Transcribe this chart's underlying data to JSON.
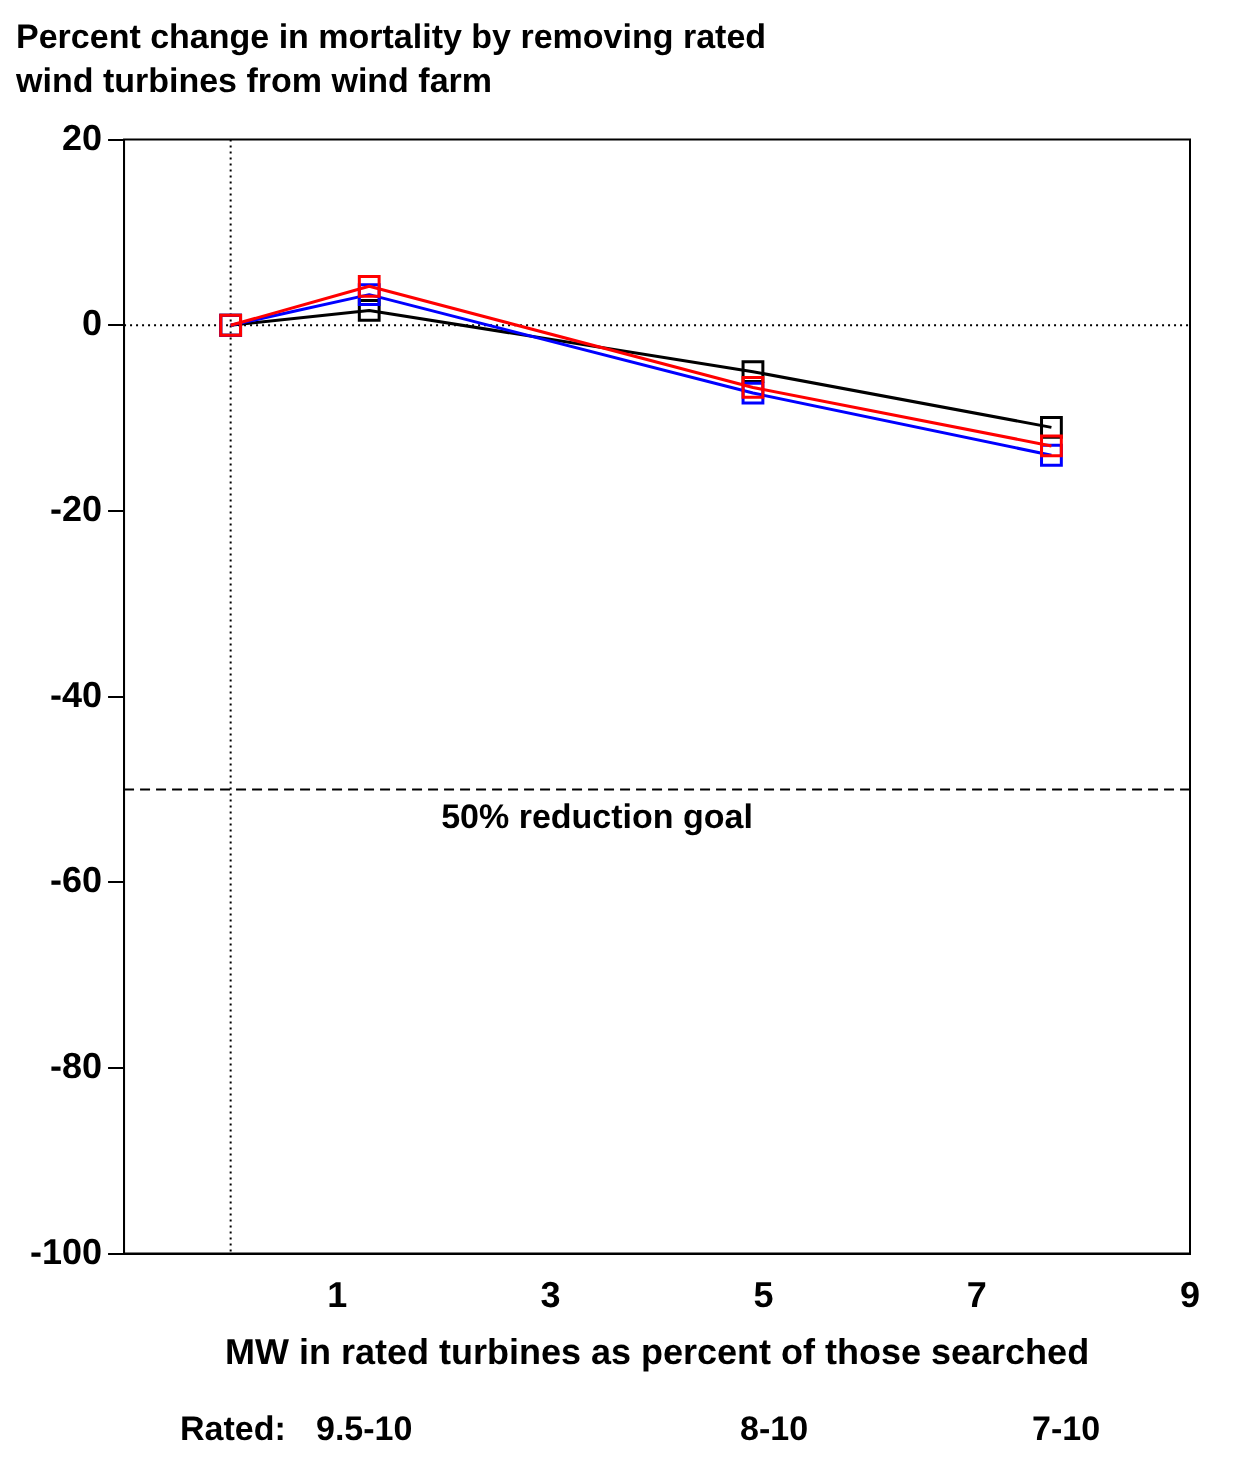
{
  "chart_data": {
    "type": "line",
    "title": "Percent change in mortality by removing rated wind turbines from wind farm",
    "xlabel": "MW in rated turbines as percent of those searched",
    "series": [
      {
        "color": "#ff0000",
        "x": [
          0,
          1.3,
          4.9,
          7.7
        ],
        "values": [
          0,
          4.2,
          -6.7,
          -13
        ]
      },
      {
        "color": "#0000ff",
        "x": [
          0,
          1.3,
          4.9,
          7.7
        ],
        "values": [
          0,
          3.3,
          -7.3,
          -14
        ]
      },
      {
        "color": "#000000",
        "x": [
          0,
          1.3,
          4.9,
          7.7
        ],
        "values": [
          0,
          1.6,
          -5,
          -11
        ]
      }
    ],
    "xlim": [
      -1,
      9
    ],
    "xticks": [
      {
        "value": -1,
        "label": null
      },
      1,
      3,
      5,
      7,
      9
    ],
    "ylim": [
      -100,
      20
    ],
    "yticks": [
      -100,
      -80,
      -60,
      -40,
      -20,
      0,
      20
    ],
    "ref_lines": [
      {
        "axis": "y",
        "value": 0,
        "line_style": "dotted"
      },
      {
        "axis": "x",
        "value": 0,
        "line_style": "dotted"
      },
      {
        "axis": "y",
        "value": -50,
        "label": "50% reduction goal",
        "line_style": "dashed"
      }
    ],
    "annotations": [
      "Rated:",
      "9.5-10",
      "8-10",
      "7-10"
    ],
    "marker": "square",
    "line_style": "solid",
    "grid": false,
    "legend": false
  }
}
